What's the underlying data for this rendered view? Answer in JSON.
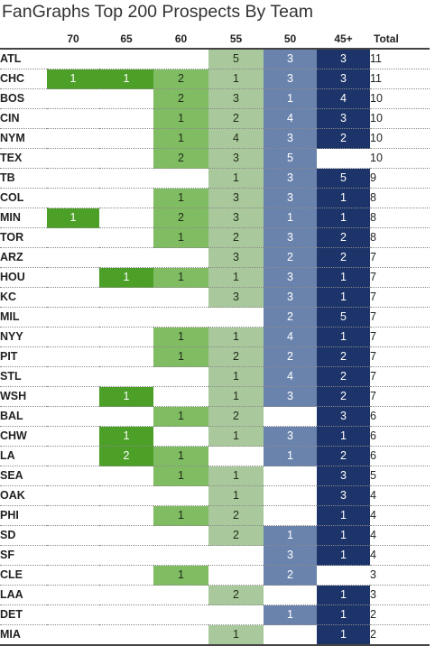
{
  "chart_data": {
    "type": "table",
    "title": "FanGraphs Top 200 Prospects By Team",
    "columns": [
      "70",
      "65",
      "60",
      "55",
      "50",
      "45+",
      "Total"
    ],
    "colors": {
      "70": "#4c9f27",
      "65": "#4c9f27",
      "60": "#80bc62",
      "55": "#a9c99c",
      "50": "#6a83ad",
      "45+": "#1c3469"
    },
    "rows": [
      {
        "team": "ATL",
        "values": [
          null,
          null,
          null,
          5,
          3,
          3
        ],
        "total": 11
      },
      {
        "team": "CHC",
        "values": [
          1,
          1,
          2,
          1,
          3,
          3
        ],
        "total": 11
      },
      {
        "team": "BOS",
        "values": [
          null,
          null,
          2,
          3,
          1,
          4
        ],
        "total": 10
      },
      {
        "team": "CIN",
        "values": [
          null,
          null,
          1,
          2,
          4,
          3
        ],
        "total": 10
      },
      {
        "team": "NYM",
        "values": [
          null,
          null,
          1,
          4,
          3,
          2
        ],
        "total": 10
      },
      {
        "team": "TEX",
        "values": [
          null,
          null,
          2,
          3,
          5,
          null
        ],
        "total": 10
      },
      {
        "team": "TB",
        "values": [
          null,
          null,
          null,
          1,
          3,
          5
        ],
        "total": 9
      },
      {
        "team": "COL",
        "values": [
          null,
          null,
          1,
          3,
          3,
          1
        ],
        "total": 8
      },
      {
        "team": "MIN",
        "values": [
          1,
          null,
          2,
          3,
          1,
          1
        ],
        "total": 8
      },
      {
        "team": "TOR",
        "values": [
          null,
          null,
          1,
          2,
          3,
          2
        ],
        "total": 8
      },
      {
        "team": "ARZ",
        "values": [
          null,
          null,
          null,
          3,
          2,
          2
        ],
        "total": 7
      },
      {
        "team": "HOU",
        "values": [
          null,
          1,
          1,
          1,
          3,
          1
        ],
        "total": 7
      },
      {
        "team": "KC",
        "values": [
          null,
          null,
          null,
          3,
          3,
          1
        ],
        "total": 7
      },
      {
        "team": "MIL",
        "values": [
          null,
          null,
          null,
          null,
          2,
          5
        ],
        "total": 7
      },
      {
        "team": "NYY",
        "values": [
          null,
          null,
          1,
          1,
          4,
          1
        ],
        "total": 7
      },
      {
        "team": "PIT",
        "values": [
          null,
          null,
          1,
          2,
          2,
          2
        ],
        "total": 7
      },
      {
        "team": "STL",
        "values": [
          null,
          null,
          null,
          1,
          4,
          2
        ],
        "total": 7
      },
      {
        "team": "WSH",
        "values": [
          null,
          1,
          null,
          1,
          3,
          2
        ],
        "total": 7
      },
      {
        "team": "BAL",
        "values": [
          null,
          null,
          1,
          2,
          null,
          3
        ],
        "total": 6
      },
      {
        "team": "CHW",
        "values": [
          null,
          1,
          null,
          1,
          3,
          1
        ],
        "total": 6
      },
      {
        "team": "LA",
        "values": [
          null,
          2,
          1,
          null,
          1,
          2
        ],
        "total": 6
      },
      {
        "team": "SEA",
        "values": [
          null,
          null,
          1,
          1,
          null,
          3
        ],
        "total": 5
      },
      {
        "team": "OAK",
        "values": [
          null,
          null,
          null,
          1,
          null,
          3
        ],
        "total": 4
      },
      {
        "team": "PHI",
        "values": [
          null,
          null,
          1,
          2,
          null,
          1
        ],
        "total": 4
      },
      {
        "team": "SD",
        "values": [
          null,
          null,
          null,
          2,
          1,
          1
        ],
        "total": 4
      },
      {
        "team": "SF",
        "values": [
          null,
          null,
          null,
          null,
          3,
          1
        ],
        "total": 4
      },
      {
        "team": "CLE",
        "values": [
          null,
          null,
          1,
          null,
          2,
          null
        ],
        "total": 3
      },
      {
        "team": "LAA",
        "values": [
          null,
          null,
          null,
          2,
          null,
          1
        ],
        "total": 3
      },
      {
        "team": "DET",
        "values": [
          null,
          null,
          null,
          null,
          1,
          1
        ],
        "total": 2
      },
      {
        "team": "MIA",
        "values": [
          null,
          null,
          null,
          1,
          null,
          1
        ],
        "total": 2
      }
    ]
  }
}
